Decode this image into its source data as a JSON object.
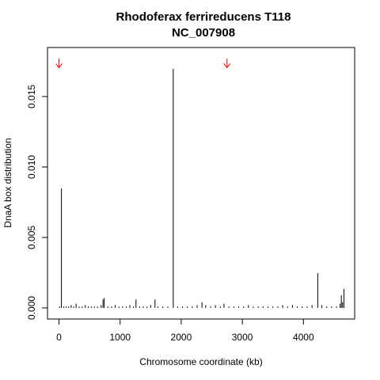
{
  "chart_data": {
    "type": "spike",
    "title": "Rhodoferax ferrireducens T118",
    "subtitle": "NC_007908",
    "x_label": "Chromosome coordinate (kb)",
    "y_label": "DnaA box distribution",
    "color": "#000000",
    "x": [
      10,
      40,
      80,
      120,
      160,
      200,
      240,
      280,
      330,
      380,
      430,
      480,
      530,
      580,
      630,
      690,
      720,
      740,
      800,
      860,
      920,
      980,
      1040,
      1100,
      1160,
      1220,
      1260,
      1320,
      1380,
      1440,
      1500,
      1571,
      1620,
      1700,
      1780,
      1870,
      1940,
      2020,
      2100,
      2180,
      2260,
      2340,
      2400,
      2480,
      2560,
      2640,
      2700,
      2780,
      2860,
      2940,
      3020,
      3100,
      3180,
      3260,
      3340,
      3420,
      3500,
      3580,
      3660,
      3740,
      3820,
      3900,
      3980,
      4060,
      4140,
      4234,
      4300,
      4380,
      4460,
      4540,
      4600,
      4620,
      4640,
      4662
    ],
    "values": [
      0.0001,
      0.00848,
      0.0001,
      0.0001,
      0.0001,
      0.0002,
      0.0001,
      0.0003,
      0.0001,
      0.0001,
      0.0002,
      0.0001,
      0.0001,
      0.0001,
      0.0001,
      0.0002,
      0.0006,
      0.0007,
      0.0001,
      0.0001,
      0.0002,
      0.0001,
      0.0001,
      0.0001,
      0.0002,
      0.0001,
      0.0006,
      0.0001,
      0.0001,
      0.0001,
      0.0002,
      0.0006,
      0.0001,
      0.0001,
      0.0001,
      0.01697,
      0.0001,
      0.0001,
      0.0001,
      0.0001,
      0.0002,
      0.0004,
      0.0002,
      0.0001,
      0.0002,
      0.0001,
      0.0003,
      0.0001,
      0.0001,
      0.0001,
      0.0001,
      0.0002,
      0.0001,
      0.0001,
      0.0001,
      0.0001,
      0.0001,
      0.0001,
      0.0002,
      0.0001,
      0.0002,
      0.0001,
      0.0001,
      0.0001,
      0.0002,
      0.00247,
      0.0002,
      0.0001,
      0.0001,
      0.0001,
      0.0003,
      0.0009,
      0.0004,
      0.00135
    ],
    "arrows": {
      "color": "#ff0000",
      "x": [
        0,
        2750
      ],
      "top": 0.0177,
      "bottom": 0.01705
    },
    "xlim": [
      -188,
      4838
    ],
    "ylim": [
      -0.00079,
      0.01848
    ],
    "xticks": [
      0,
      1000,
      2000,
      3000,
      4000
    ],
    "yticks": [
      {
        "value": 0,
        "label": "0.000"
      },
      {
        "value": 0.005,
        "label": "0.005"
      },
      {
        "value": 0.01,
        "label": "0.010"
      },
      {
        "value": 0.015,
        "label": "0.015"
      }
    ]
  }
}
